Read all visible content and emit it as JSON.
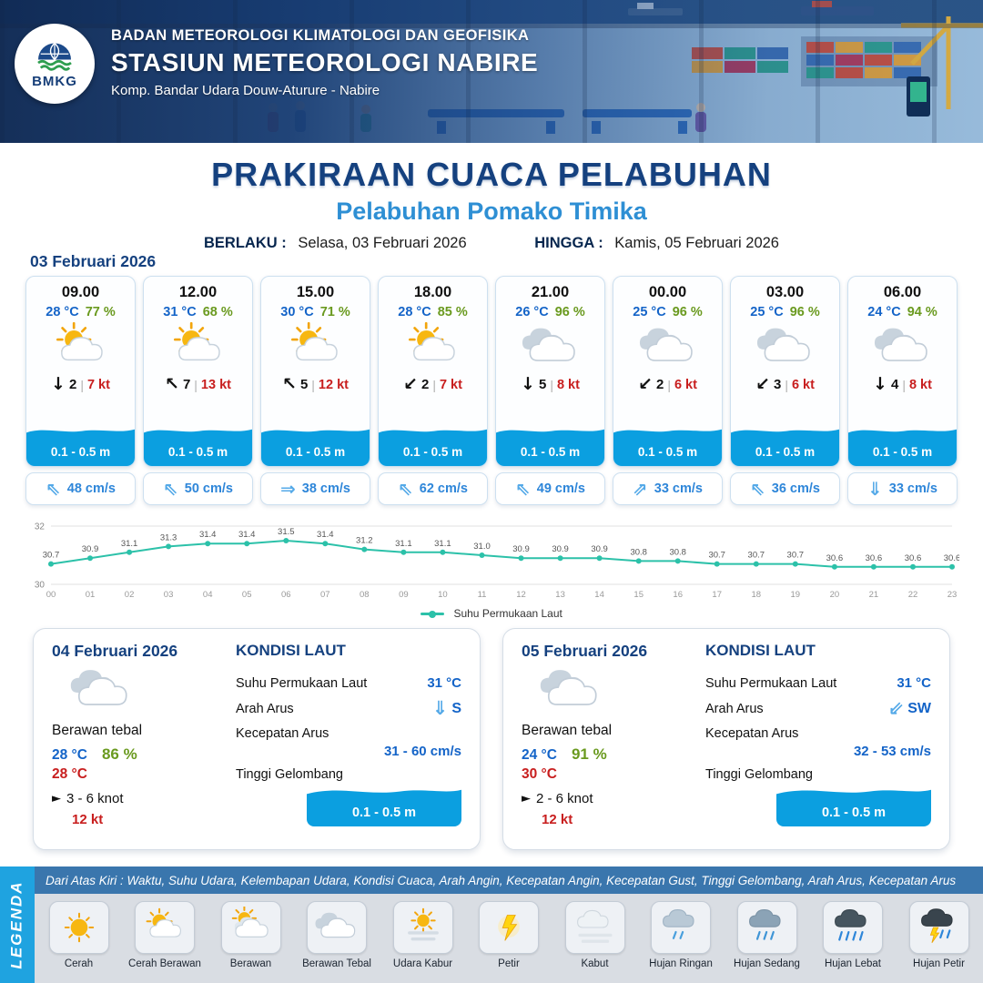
{
  "header": {
    "logo_text": "BMKG",
    "agency": "BADAN METEOROLOGI KLIMATOLOGI DAN GEOFISIKA",
    "station": "STASIUN METEOROLOGI NABIRE",
    "address": "Komp. Bandar Udara Douw-Aturure - Nabire"
  },
  "title": {
    "main": "PRAKIRAAN CUACA PELABUHAN",
    "subtitle": "Pelabuhan Pomako Timika",
    "berlaku_label": "BERLAKU :",
    "berlaku_value": "Selasa, 03 Februari 2026",
    "hingga_label": "HINGGA :",
    "hingga_value": "Kamis, 05 Februari 2026"
  },
  "forecast_date": "03 Februari 2026",
  "hourly": [
    {
      "time": "09.00",
      "temp": "28 °C",
      "rh": "77 %",
      "icon": "cerah-berawan",
      "wind_arrow": "↓",
      "wind_speed": "2",
      "wind_gust": "7 kt",
      "wave_height": "0.1 - 0.5 m",
      "current_arrow": "⇖",
      "current_speed": "48 cm/s"
    },
    {
      "time": "12.00",
      "temp": "31 °C",
      "rh": "68 %",
      "icon": "cerah-berawan",
      "wind_arrow": "↖",
      "wind_speed": "7",
      "wind_gust": "13 kt",
      "wave_height": "0.1 - 0.5 m",
      "current_arrow": "⇖",
      "current_speed": "50 cm/s"
    },
    {
      "time": "15.00",
      "temp": "30 °C",
      "rh": "71 %",
      "icon": "cerah-berawan",
      "wind_arrow": "↖",
      "wind_speed": "5",
      "wind_gust": "12 kt",
      "wave_height": "0.1 - 0.5 m",
      "current_arrow": "⇒",
      "current_speed": "38 cm/s"
    },
    {
      "time": "18.00",
      "temp": "28 °C",
      "rh": "85 %",
      "icon": "cerah-berawan",
      "wind_arrow": "↙",
      "wind_speed": "2",
      "wind_gust": "7 kt",
      "wave_height": "0.1 - 0.5 m",
      "current_arrow": "⇖",
      "current_speed": "62 cm/s"
    },
    {
      "time": "21.00",
      "temp": "26 °C",
      "rh": "96 %",
      "icon": "berawan-tebal",
      "wind_arrow": "↓",
      "wind_speed": "5",
      "wind_gust": "8 kt",
      "wave_height": "0.1 - 0.5 m",
      "current_arrow": "⇖",
      "current_speed": "49 cm/s"
    },
    {
      "time": "00.00",
      "temp": "25 °C",
      "rh": "96 %",
      "icon": "berawan-tebal",
      "wind_arrow": "↙",
      "wind_speed": "2",
      "wind_gust": "6 kt",
      "wave_height": "0.1 - 0.5 m",
      "current_arrow": "⇗",
      "current_speed": "33 cm/s"
    },
    {
      "time": "03.00",
      "temp": "25 °C",
      "rh": "96 %",
      "icon": "berawan-tebal",
      "wind_arrow": "↙",
      "wind_speed": "3",
      "wind_gust": "6 kt",
      "wave_height": "0.1 - 0.5 m",
      "current_arrow": "⇖",
      "current_speed": "36 cm/s"
    },
    {
      "time": "06.00",
      "temp": "24 °C",
      "rh": "94 %",
      "icon": "berawan-tebal",
      "wind_arrow": "↓",
      "wind_speed": "4",
      "wind_gust": "8 kt",
      "wave_height": "0.1 - 0.5 m",
      "current_arrow": "⇓",
      "current_speed": "33 cm/s"
    }
  ],
  "chart_data": {
    "type": "line",
    "x": [
      "00",
      "01",
      "02",
      "03",
      "04",
      "05",
      "06",
      "07",
      "08",
      "09",
      "10",
      "11",
      "12",
      "13",
      "14",
      "15",
      "16",
      "17",
      "18",
      "19",
      "20",
      "21",
      "22",
      "23"
    ],
    "series": [
      {
        "name": "Suhu Permukaan Laut",
        "values": [
          30.7,
          30.9,
          31.1,
          31.3,
          31.4,
          31.4,
          31.5,
          31.4,
          31.2,
          31.1,
          31.1,
          31.0,
          30.9,
          30.9,
          30.9,
          30.8,
          30.8,
          30.7,
          30.7,
          30.7,
          30.6,
          30.6,
          30.6,
          30.6
        ]
      }
    ],
    "ylim": [
      30,
      32
    ],
    "yticks": [
      30,
      32
    ],
    "line_color": "#2cc1a9",
    "grid": true,
    "legend_position": "bottom"
  },
  "daily": [
    {
      "date": "04 Februari 2026",
      "icon": "berawan-tebal",
      "condition": "Berawan tebal",
      "temp_min": "28 °C",
      "humidity": "86 %",
      "temp_max": "28 °C",
      "wind_arrow": "►",
      "wind_knots": "3 - 6 knot",
      "wind_gust": "12 kt",
      "sea_title": "KONDISI LAUT",
      "sst_label": "Suhu Permukaan Laut",
      "sst_value": "31 °C",
      "current_dir_label": "Arah Arus",
      "current_dir_arrow": "⇓",
      "current_dir_value": "S",
      "current_speed_label": "Kecepatan Arus",
      "current_speed_value": "31 - 60 cm/s",
      "wave_label": "Tinggi Gelombang",
      "wave_value": "0.1 - 0.5 m"
    },
    {
      "date": "05 Februari 2026",
      "icon": "berawan-tebal",
      "condition": "Berawan tebal",
      "temp_min": "24 °C",
      "humidity": "91 %",
      "temp_max": "30 °C",
      "wind_arrow": "►",
      "wind_knots": "2  - 6 knot",
      "wind_gust": "12 kt",
      "sea_title": "KONDISI LAUT",
      "sst_label": "Suhu Permukaan Laut",
      "sst_value": "31 °C",
      "current_dir_label": "Arah Arus",
      "current_dir_arrow": "⇙",
      "current_dir_value": "SW",
      "current_speed_label": "Kecepatan Arus",
      "current_speed_value": "32 - 53 cm/s",
      "wave_label": "Tinggi Gelombang",
      "wave_value": "0.1 - 0.5 m"
    }
  ],
  "legend": {
    "title": "LEGENDA",
    "note": "Dari Atas Kiri : Waktu, Suhu Udara, Kelembapan Udara, Kondisi Cuaca, Arah Angin, Kecepatan Angin, Kecepatan Gust, Tinggi Gelombang, Arah Arus, Kecepatan Arus",
    "items": [
      {
        "label": "Cerah",
        "icon": "cerah"
      },
      {
        "label": "Cerah Berawan",
        "icon": "cerah-berawan"
      },
      {
        "label": "Berawan",
        "icon": "berawan"
      },
      {
        "label": "Berawan Tebal",
        "icon": "berawan-tebal"
      },
      {
        "label": "Udara Kabur",
        "icon": "udara-kabur"
      },
      {
        "label": "Petir",
        "icon": "petir"
      },
      {
        "label": "Kabut",
        "icon": "kabut"
      },
      {
        "label": "Hujan Ringan",
        "icon": "hujan-ringan"
      },
      {
        "label": "Hujan Sedang",
        "icon": "hujan-sedang"
      },
      {
        "label": "Hujan Lebat",
        "icon": "hujan-lebat"
      },
      {
        "label": "Hujan Petir",
        "icon": "hujan-petir"
      }
    ]
  },
  "colors": {
    "navy": "#15417f",
    "subtitle_blue": "#2e8fd4",
    "temp_blue": "#1464c8",
    "humidity_green": "#6a9a1f",
    "gust_red": "#c81e1e",
    "wave_blue": "#0b9fe0",
    "current_blue": "#2e86d9",
    "chart_teal": "#2cc1a9",
    "legend_band_blue": "#1fa3e0",
    "note_strip_blue": "#3a76ad"
  }
}
